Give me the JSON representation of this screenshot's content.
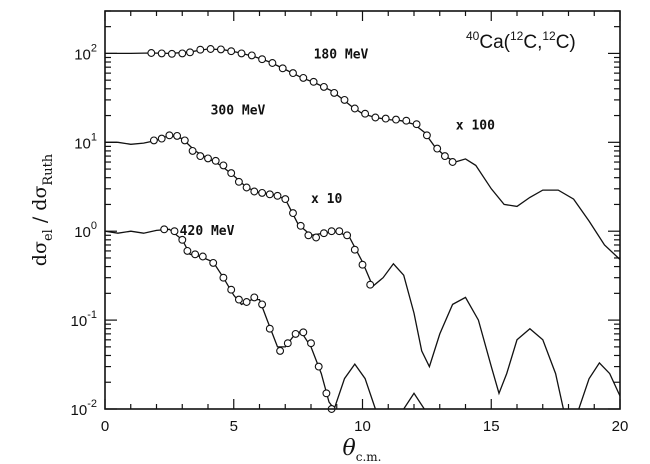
{
  "chart_data": {
    "type": "line",
    "title": "",
    "annotation": {
      "sup1": "40",
      "main1": "Ca(",
      "sup2": "12",
      "main2": "C,",
      "sup3": "12",
      "main3": "C)"
    },
    "xlabel": {
      "main": "θ",
      "sub": "c.m."
    },
    "ylabel": {
      "a": "dσ",
      "a_sub": "el",
      "sep": " / ",
      "b": "dσ",
      "b_sub": "Ruth"
    },
    "xlim": [
      0,
      20
    ],
    "ylim": [
      0.01,
      300
    ],
    "y_scale": "log",
    "x_ticks": [
      0,
      5,
      10,
      15,
      20
    ],
    "x_tick_labels": [
      "0",
      "5",
      "10",
      "15",
      "20"
    ],
    "y_ticks": [
      {
        "base": "10",
        "exp": "2",
        "value": 100
      },
      {
        "base": "10",
        "exp": "1",
        "value": 10
      },
      {
        "base": "10",
        "exp": "0",
        "value": 1
      },
      {
        "base": "10",
        "exp": "-1",
        "value": 0.1
      },
      {
        "base": "10",
        "exp": "-2",
        "value": 0.01
      }
    ],
    "series": [
      {
        "name": "180 MeV",
        "scale_label": "x 100",
        "curve": [
          [
            0,
            100
          ],
          [
            1,
            100
          ],
          [
            1.8,
            101
          ],
          [
            2.5,
            100
          ],
          [
            3.2,
            103
          ],
          [
            4.0,
            112
          ],
          [
            4.6,
            110
          ],
          [
            5.2,
            102
          ],
          [
            5.8,
            92
          ],
          [
            6.4,
            80
          ],
          [
            7.0,
            66
          ],
          [
            7.6,
            54
          ],
          [
            8.2,
            46
          ],
          [
            8.8,
            38
          ],
          [
            9.2,
            31
          ],
          [
            9.6,
            25
          ],
          [
            10.0,
            21
          ],
          [
            10.5,
            19
          ],
          [
            11.0,
            18
          ],
          [
            11.5,
            17.5
          ],
          [
            12.0,
            16
          ],
          [
            12.4,
            13
          ],
          [
            12.8,
            9
          ],
          [
            13.2,
            7
          ],
          [
            13.6,
            6
          ],
          [
            14.0,
            6.5
          ],
          [
            14.4,
            5.5
          ],
          [
            15.0,
            3
          ],
          [
            15.5,
            2
          ],
          [
            16.0,
            1.9
          ],
          [
            16.5,
            2.4
          ],
          [
            17.0,
            2.9
          ],
          [
            17.6,
            2.9
          ],
          [
            18.2,
            2.3
          ],
          [
            18.8,
            1.3
          ],
          [
            19.4,
            0.7
          ],
          [
            20,
            0.48
          ]
        ],
        "points": [
          [
            1.8,
            101
          ],
          [
            2.2,
            100
          ],
          [
            2.6,
            99
          ],
          [
            3.0,
            100
          ],
          [
            3.3,
            103
          ],
          [
            3.7,
            110
          ],
          [
            4.1,
            112
          ],
          [
            4.5,
            111
          ],
          [
            4.9,
            106
          ],
          [
            5.3,
            100
          ],
          [
            5.7,
            95
          ],
          [
            6.1,
            86
          ],
          [
            6.5,
            78
          ],
          [
            6.9,
            68
          ],
          [
            7.3,
            60
          ],
          [
            7.7,
            53
          ],
          [
            8.1,
            48
          ],
          [
            8.5,
            42
          ],
          [
            8.9,
            36
          ],
          [
            9.3,
            30
          ],
          [
            9.7,
            24
          ],
          [
            10.1,
            21
          ],
          [
            10.5,
            19
          ],
          [
            10.9,
            18.5
          ],
          [
            11.3,
            18
          ],
          [
            11.7,
            17.5
          ],
          [
            12.1,
            16
          ],
          [
            12.5,
            12
          ],
          [
            12.9,
            8.5
          ],
          [
            13.2,
            7
          ],
          [
            13.5,
            6
          ]
        ]
      },
      {
        "name": "300 MeV",
        "scale_label": "x 10",
        "curve": [
          [
            0,
            10
          ],
          [
            0.5,
            10
          ],
          [
            1.0,
            9.5
          ],
          [
            1.5,
            9.8
          ],
          [
            2.0,
            10.5
          ],
          [
            2.5,
            12
          ],
          [
            3.0,
            11
          ],
          [
            3.5,
            8
          ],
          [
            4.0,
            6.6
          ],
          [
            4.5,
            5.5
          ],
          [
            5.0,
            4.2
          ],
          [
            5.5,
            3.1
          ],
          [
            6.0,
            2.7
          ],
          [
            6.5,
            2.6
          ],
          [
            7.0,
            2.3
          ],
          [
            7.5,
            1.2
          ],
          [
            8.0,
            0.9
          ],
          [
            8.5,
            0.95
          ],
          [
            9.0,
            1.0
          ],
          [
            9.5,
            0.85
          ],
          [
            10.0,
            0.45
          ],
          [
            10.4,
            0.24
          ],
          [
            10.8,
            0.3
          ],
          [
            11.2,
            0.43
          ],
          [
            11.6,
            0.32
          ],
          [
            12.0,
            0.12
          ],
          [
            12.3,
            0.045
          ],
          [
            12.6,
            0.03
          ],
          [
            13.0,
            0.07
          ],
          [
            13.5,
            0.15
          ],
          [
            14.0,
            0.18
          ],
          [
            14.5,
            0.1
          ],
          [
            15.0,
            0.03
          ],
          [
            15.3,
            0.015
          ],
          [
            15.6,
            0.025
          ],
          [
            16.0,
            0.06
          ],
          [
            16.5,
            0.08
          ],
          [
            17.0,
            0.06
          ],
          [
            17.5,
            0.025
          ],
          [
            17.8,
            0.01
          ]
        ],
        "points": [
          [
            1.9,
            10.5
          ],
          [
            2.2,
            11
          ],
          [
            2.5,
            12
          ],
          [
            2.8,
            11.8
          ],
          [
            3.1,
            10.5
          ],
          [
            3.4,
            8
          ],
          [
            3.7,
            7
          ],
          [
            4.0,
            6.6
          ],
          [
            4.3,
            6.2
          ],
          [
            4.6,
            5.5
          ],
          [
            4.9,
            4.5
          ],
          [
            5.2,
            3.6
          ],
          [
            5.5,
            3.1
          ],
          [
            5.8,
            2.8
          ],
          [
            6.1,
            2.7
          ],
          [
            6.4,
            2.6
          ],
          [
            6.7,
            2.5
          ],
          [
            7.0,
            2.3
          ],
          [
            7.3,
            1.6
          ],
          [
            7.6,
            1.15
          ],
          [
            7.9,
            0.9
          ],
          [
            8.2,
            0.85
          ],
          [
            8.5,
            0.95
          ],
          [
            8.8,
            1.0
          ],
          [
            9.1,
            1.0
          ],
          [
            9.4,
            0.9
          ],
          [
            9.7,
            0.62
          ],
          [
            10.0,
            0.42
          ],
          [
            10.3,
            0.25
          ]
        ]
      },
      {
        "name": "420 MeV",
        "scale_label": "",
        "curve": [
          [
            0,
            1.0
          ],
          [
            0.5,
            0.95
          ],
          [
            1.0,
            1.0
          ],
          [
            1.5,
            0.95
          ],
          [
            2.0,
            1.02
          ],
          [
            2.5,
            1.05
          ],
          [
            3.0,
            0.8
          ],
          [
            3.3,
            0.55
          ],
          [
            3.7,
            0.52
          ],
          [
            4.2,
            0.45
          ],
          [
            4.6,
            0.3
          ],
          [
            5.0,
            0.19
          ],
          [
            5.3,
            0.15
          ],
          [
            5.7,
            0.17
          ],
          [
            6.0,
            0.17
          ],
          [
            6.3,
            0.1
          ],
          [
            6.7,
            0.05
          ],
          [
            7.0,
            0.05
          ],
          [
            7.3,
            0.065
          ],
          [
            7.6,
            0.075
          ],
          [
            8.0,
            0.05
          ],
          [
            8.4,
            0.025
          ],
          [
            8.7,
            0.012
          ],
          [
            8.9,
            0.01
          ]
        ],
        "points": [
          [
            2.3,
            1.05
          ],
          [
            2.7,
            1.0
          ],
          [
            3.0,
            0.8
          ],
          [
            3.2,
            0.6
          ],
          [
            3.5,
            0.55
          ],
          [
            3.8,
            0.52
          ],
          [
            4.2,
            0.44
          ],
          [
            4.6,
            0.3
          ],
          [
            4.9,
            0.22
          ],
          [
            5.2,
            0.17
          ],
          [
            5.5,
            0.16
          ],
          [
            5.8,
            0.18
          ],
          [
            6.1,
            0.15
          ],
          [
            6.4,
            0.08
          ],
          [
            6.8,
            0.045
          ],
          [
            7.1,
            0.055
          ],
          [
            7.4,
            0.07
          ],
          [
            7.7,
            0.073
          ],
          [
            8.0,
            0.055
          ],
          [
            8.3,
            0.03
          ],
          [
            8.6,
            0.015
          ],
          [
            8.8,
            0.01
          ]
        ]
      }
    ],
    "extra_curves": [
      {
        "curve": [
          [
            8.9,
            0.01
          ],
          [
            9.3,
            0.022
          ],
          [
            9.7,
            0.032
          ],
          [
            10.1,
            0.022
          ],
          [
            10.5,
            0.01
          ]
        ]
      },
      {
        "curve": [
          [
            11.6,
            0.01
          ],
          [
            12.0,
            0.015
          ],
          [
            12.4,
            0.01
          ]
        ]
      },
      {
        "curve": [
          [
            18.4,
            0.01
          ],
          [
            18.8,
            0.022
          ],
          [
            19.2,
            0.033
          ],
          [
            19.6,
            0.025
          ],
          [
            20.0,
            0.014
          ]
        ]
      }
    ]
  }
}
